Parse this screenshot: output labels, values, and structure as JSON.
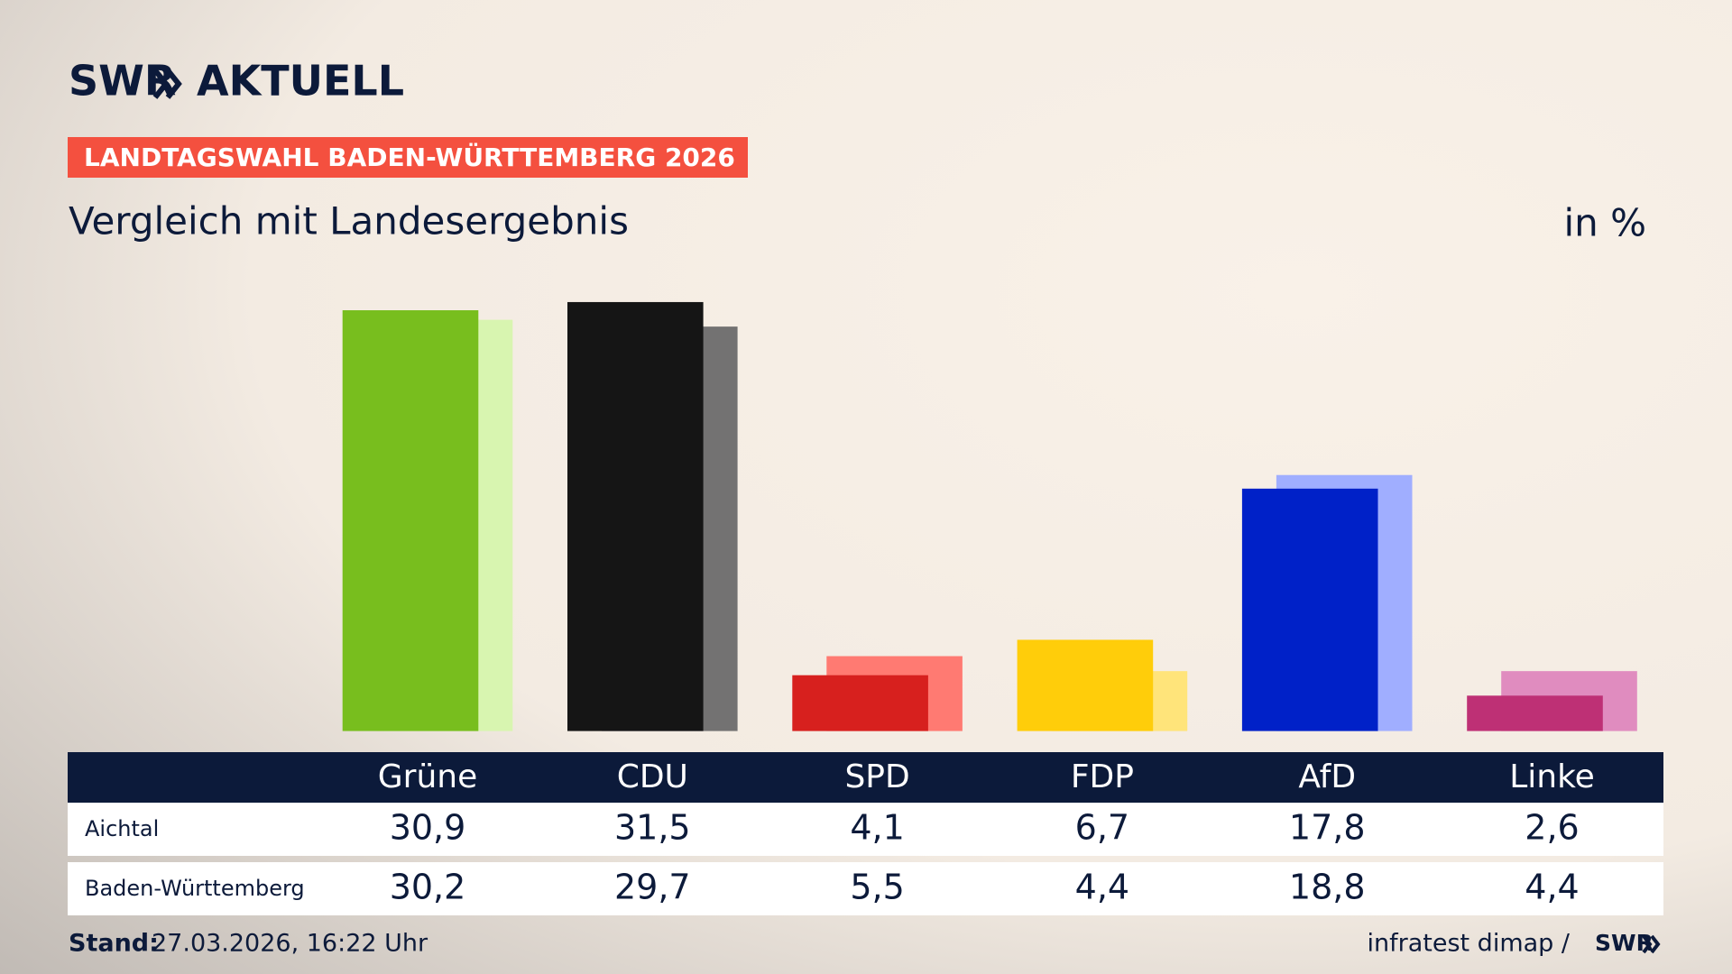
{
  "brand": {
    "name": "SWR",
    "product": "AKTUELL",
    "badge": "LANDTAGSWAHL BADEN-WÜRTTEMBERG 2026"
  },
  "chart_data": {
    "type": "bar",
    "title": "Vergleich mit Landesergebnis",
    "unit": "in %",
    "categories": [
      "Grüne",
      "CDU",
      "SPD",
      "FDP",
      "AfD",
      "Linke"
    ],
    "series": [
      {
        "name": "Aichtal",
        "colors": [
          "#78be1e",
          "#151515",
          "#d7201e",
          "#ffcd0a",
          "#0021c8",
          "#be3075"
        ],
        "values": [
          30.9,
          31.5,
          4.1,
          6.7,
          17.8,
          2.6
        ],
        "value_labels": [
          "30,9",
          "31,5",
          "4,1",
          "6,7",
          "17,8",
          "2,6"
        ]
      },
      {
        "name": "Baden-Württemberg",
        "colors": [
          "#d8f5b0",
          "#737272",
          "#ff7a72",
          "#ffe47a",
          "#a0aeff",
          "#e08cbf"
        ],
        "values": [
          30.2,
          29.7,
          5.5,
          4.4,
          18.8,
          4.4
        ],
        "value_labels": [
          "30,2",
          "29,7",
          "5,5",
          "4,4",
          "18,8",
          "4,4"
        ]
      }
    ]
  },
  "footer": {
    "stand_label": "Stand:",
    "stand_date": "27.03.2026, 16:22 Uhr",
    "source": "infratest dimap /",
    "source_brand": "SWR"
  }
}
